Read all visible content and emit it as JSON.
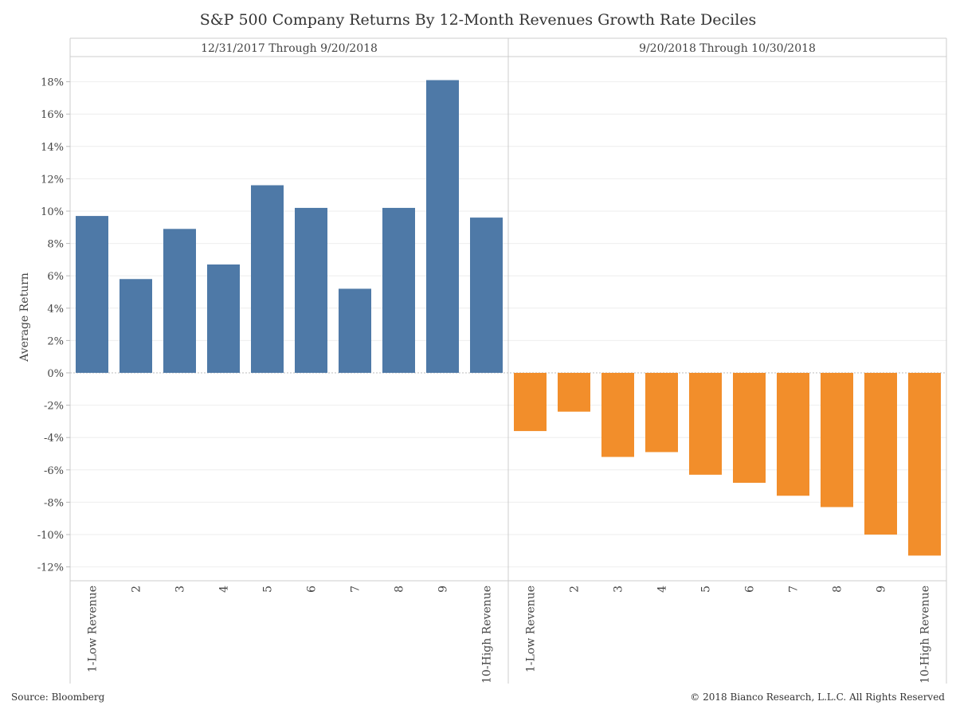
{
  "chart_data": {
    "type": "bar",
    "title": "S&P 500 Company Returns By 12-Month Revenues Growth Rate Deciles",
    "ylabel": "Average Return",
    "ylim": [
      -13,
      20.5
    ],
    "yticks": [
      18,
      16,
      14,
      12,
      10,
      8,
      6,
      4,
      2,
      0,
      -2,
      -4,
      -6,
      -8,
      -10,
      -12
    ],
    "ytick_labels": [
      "18%",
      "16%",
      "14%",
      "12%",
      "10%",
      "8%",
      "6%",
      "4%",
      "2%",
      "0%",
      "-2%",
      "-4%",
      "-6%",
      "-8%",
      "-10%",
      "-12%"
    ],
    "categories": [
      "1-Low Revenue",
      "2",
      "3",
      "4",
      "5",
      "6",
      "7",
      "8",
      "9",
      "10-High Revenue"
    ],
    "grid": true,
    "panels": [
      {
        "name": "12/31/2017 Through 9/20/2018",
        "color": "#4e79a7",
        "values": [
          9.7,
          5.8,
          8.9,
          6.7,
          11.6,
          10.2,
          5.2,
          10.2,
          18.1,
          9.6
        ]
      },
      {
        "name": "9/20/2018 Through 10/30/2018",
        "color": "#f28e2b",
        "values": [
          -3.6,
          -2.4,
          -5.2,
          -4.9,
          -6.3,
          -6.8,
          -7.6,
          -8.3,
          -10.0,
          -11.3
        ]
      }
    ]
  },
  "footer": {
    "source": "Source: Bloomberg",
    "copyright": "© 2018 Bianco Research, L.L.C. All Rights Reserved"
  }
}
